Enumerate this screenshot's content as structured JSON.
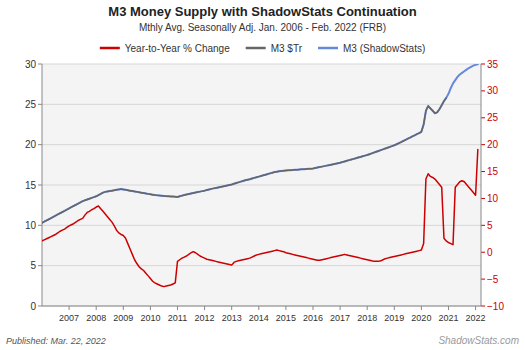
{
  "chart_data": {
    "type": "line",
    "title": "M3 Money Supply with ShadowStats Continuation",
    "subtitle": "Mthly Avg. Seasonally Adj. Jan. 2006 - Feb. 2022  (FRB)",
    "annotations": [
      "Published: Mar. 22, 2022",
      "ShadowStats.com"
    ],
    "x": [
      2006.0,
      2006.083,
      2006.167,
      2006.25,
      2006.333,
      2006.417,
      2006.5,
      2006.583,
      2006.667,
      2006.75,
      2006.833,
      2006.917,
      2007.0,
      2007.083,
      2007.167,
      2007.25,
      2007.333,
      2007.417,
      2007.5,
      2007.583,
      2007.667,
      2007.75,
      2007.833,
      2007.917,
      2008.0,
      2008.083,
      2008.167,
      2008.25,
      2008.333,
      2008.417,
      2008.5,
      2008.583,
      2008.667,
      2008.75,
      2008.833,
      2008.917,
      2009.0,
      2009.083,
      2009.167,
      2009.25,
      2009.333,
      2009.417,
      2009.5,
      2009.583,
      2009.667,
      2009.75,
      2009.833,
      2009.917,
      2010.0,
      2010.083,
      2010.167,
      2010.25,
      2010.333,
      2010.417,
      2010.5,
      2010.583,
      2010.667,
      2010.75,
      2010.833,
      2010.917,
      2011.0,
      2011.083,
      2011.167,
      2011.25,
      2011.333,
      2011.417,
      2011.5,
      2011.583,
      2011.667,
      2011.75,
      2011.833,
      2011.917,
      2012.0,
      2012.083,
      2012.167,
      2012.25,
      2012.333,
      2012.417,
      2012.5,
      2012.583,
      2012.667,
      2012.75,
      2012.833,
      2012.917,
      2013.0,
      2013.083,
      2013.167,
      2013.25,
      2013.333,
      2013.417,
      2013.5,
      2013.583,
      2013.667,
      2013.75,
      2013.833,
      2013.917,
      2014.0,
      2014.083,
      2014.167,
      2014.25,
      2014.333,
      2014.417,
      2014.5,
      2014.583,
      2014.667,
      2014.75,
      2014.833,
      2014.917,
      2015.0,
      2015.083,
      2015.167,
      2015.25,
      2015.333,
      2015.417,
      2015.5,
      2015.583,
      2015.667,
      2015.75,
      2015.833,
      2015.917,
      2016.0,
      2016.083,
      2016.167,
      2016.25,
      2016.333,
      2016.417,
      2016.5,
      2016.583,
      2016.667,
      2016.75,
      2016.833,
      2016.917,
      2017.0,
      2017.083,
      2017.167,
      2017.25,
      2017.333,
      2017.417,
      2017.5,
      2017.583,
      2017.667,
      2017.75,
      2017.833,
      2017.917,
      2018.0,
      2018.083,
      2018.167,
      2018.25,
      2018.333,
      2018.417,
      2018.5,
      2018.583,
      2018.667,
      2018.75,
      2018.833,
      2018.917,
      2019.0,
      2019.083,
      2019.167,
      2019.25,
      2019.333,
      2019.417,
      2019.5,
      2019.583,
      2019.667,
      2019.75,
      2019.833,
      2019.917,
      2020.0,
      2020.083,
      2020.167,
      2020.25,
      2020.333,
      2020.417,
      2020.5,
      2020.583,
      2020.667,
      2020.75,
      2020.833,
      2020.917,
      2021.0,
      2021.083,
      2021.167,
      2021.25,
      2021.333,
      2021.417,
      2021.5,
      2021.583,
      2021.667,
      2021.75,
      2021.833,
      2021.917,
      2022.0,
      2022.083
    ],
    "xlim": [
      2006.0,
      2022.2
    ],
    "xticks": [
      2007,
      2008,
      2009,
      2010,
      2011,
      2012,
      2013,
      2014,
      2015,
      2016,
      2017,
      2018,
      2019,
      2020,
      2021,
      2022
    ],
    "ylim": [
      0,
      30
    ],
    "yticks": [
      0,
      5,
      10,
      15,
      20,
      25,
      30
    ],
    "y2lim": [
      -10,
      35
    ],
    "y2ticks": [
      {
        "value": -10,
        "label": "−10"
      },
      {
        "value": -5,
        "label": "−5"
      },
      0,
      5,
      10,
      15,
      20,
      25,
      30,
      35
    ],
    "grid": true,
    "legend": "top",
    "series": [
      {
        "name": "Year-to-Year % Change",
        "color": "#cc0000",
        "axis": "y2",
        "values": [
          2.1,
          2.3,
          2.5,
          2.7,
          2.9,
          3.1,
          3.3,
          3.6,
          3.9,
          4.1,
          4.3,
          4.6,
          4.9,
          5.1,
          5.3,
          5.6,
          5.9,
          6.1,
          6.3,
          6.9,
          7.4,
          7.6,
          7.9,
          8.1,
          8.4,
          8.6,
          8.1,
          7.6,
          7.1,
          6.6,
          6.1,
          5.6,
          4.9,
          4.1,
          3.6,
          3.3,
          3.1,
          2.6,
          1.6,
          0.6,
          -0.4,
          -1.4,
          -2.1,
          -2.7,
          -3.1,
          -3.4,
          -3.9,
          -4.4,
          -4.9,
          -5.4,
          -5.7,
          -5.9,
          -6.1,
          -6.3,
          -6.4,
          -6.3,
          -6.2,
          -6.1,
          -5.9,
          -5.7,
          -1.7,
          -1.4,
          -1.1,
          -0.9,
          -0.7,
          -0.4,
          -0.1,
          0.1,
          -0.1,
          -0.4,
          -0.7,
          -0.9,
          -1.1,
          -1.3,
          -1.4,
          -1.5,
          -1.6,
          -1.7,
          -1.8,
          -1.9,
          -2.0,
          -2.1,
          -2.2,
          -2.3,
          -2.4,
          -1.9,
          -1.7,
          -1.6,
          -1.5,
          -1.4,
          -1.3,
          -1.2,
          -1.1,
          -0.9,
          -0.7,
          -0.5,
          -0.4,
          -0.3,
          -0.2,
          -0.1,
          0.0,
          0.1,
          0.2,
          0.3,
          0.4,
          0.3,
          0.2,
          0.1,
          -0.1,
          -0.2,
          -0.3,
          -0.4,
          -0.5,
          -0.6,
          -0.7,
          -0.8,
          -0.9,
          -1.0,
          -1.1,
          -1.2,
          -1.3,
          -1.4,
          -1.5,
          -1.5,
          -1.4,
          -1.3,
          -1.2,
          -1.1,
          -1.0,
          -0.9,
          -0.8,
          -0.7,
          -0.6,
          -0.5,
          -0.4,
          -0.5,
          -0.6,
          -0.7,
          -0.8,
          -0.9,
          -1.0,
          -1.1,
          -1.2,
          -1.3,
          -1.4,
          -1.5,
          -1.6,
          -1.7,
          -1.7,
          -1.7,
          -1.6,
          -1.4,
          -1.2,
          -1.1,
          -1.0,
          -0.9,
          -0.8,
          -0.7,
          -0.6,
          -0.5,
          -0.4,
          -0.3,
          -0.2,
          -0.1,
          0.0,
          0.1,
          0.2,
          0.3,
          0.4,
          1.6,
          13.6,
          14.6,
          14.1,
          13.9,
          13.6,
          13.1,
          12.6,
          12.1,
          2.6,
          2.1,
          1.8,
          1.6,
          1.4,
          12.1,
          12.6,
          13.1,
          13.3,
          13.1,
          12.6,
          12.1,
          11.6,
          11.1,
          10.6,
          19.1
        ]
      },
      {
        "name": "M3 $Tr",
        "color": "#666666",
        "values": [
          10.3,
          10.45,
          10.6,
          10.75,
          10.9,
          11.05,
          11.2,
          11.35,
          11.5,
          11.65,
          11.8,
          11.95,
          12.1,
          12.25,
          12.4,
          12.55,
          12.7,
          12.85,
          13.0,
          13.1,
          13.2,
          13.3,
          13.4,
          13.5,
          13.6,
          13.75,
          13.9,
          14.05,
          14.15,
          14.2,
          14.25,
          14.3,
          14.35,
          14.4,
          14.45,
          14.5,
          14.45,
          14.4,
          14.35,
          14.3,
          14.25,
          14.2,
          14.15,
          14.1,
          14.05,
          14.0,
          13.95,
          13.9,
          13.85,
          13.8,
          13.75,
          13.72,
          13.7,
          13.68,
          13.65,
          13.62,
          13.6,
          13.58,
          13.56,
          13.54,
          13.52,
          13.6,
          13.68,
          13.75,
          13.82,
          13.88,
          13.94,
          14.0,
          14.06,
          14.12,
          14.18,
          14.24,
          14.3,
          14.38,
          14.45,
          14.52,
          14.58,
          14.64,
          14.7,
          14.76,
          14.82,
          14.88,
          14.94,
          15.0,
          15.06,
          15.15,
          15.24,
          15.33,
          15.42,
          15.5,
          15.58,
          15.65,
          15.72,
          15.8,
          15.88,
          15.96,
          16.04,
          16.12,
          16.2,
          16.28,
          16.36,
          16.44,
          16.52,
          16.6,
          16.65,
          16.7,
          16.74,
          16.77,
          16.8,
          16.82,
          16.84,
          16.86,
          16.88,
          16.9,
          16.92,
          16.94,
          16.96,
          16.98,
          17.0,
          17.02,
          17.04,
          17.1,
          17.16,
          17.22,
          17.28,
          17.34,
          17.4,
          17.46,
          17.52,
          17.58,
          17.64,
          17.7,
          17.76,
          17.84,
          17.92,
          18.0,
          18.08,
          18.16,
          18.24,
          18.32,
          18.4,
          18.48,
          18.56,
          18.64,
          18.72,
          18.82,
          18.92,
          19.02,
          19.12,
          19.22,
          19.32,
          19.42,
          19.52,
          19.62,
          19.72,
          19.82,
          19.92,
          20.05,
          20.18,
          20.32,
          20.46,
          20.6,
          20.74,
          20.88,
          21.02,
          21.16,
          21.3,
          21.44,
          21.6,
          22.5,
          24.2,
          24.8,
          24.5,
          24.2,
          23.9,
          24.0,
          24.4,
          24.9,
          25.4,
          25.8,
          null,
          null,
          null,
          null,
          null,
          null,
          null,
          null,
          null,
          null,
          null,
          null,
          null,
          null
        ]
      },
      {
        "name": "M3 (ShadowStats)",
        "color": "#6688dd",
        "values": [
          10.3,
          10.45,
          10.6,
          10.75,
          10.9,
          11.05,
          11.2,
          11.35,
          11.5,
          11.65,
          11.8,
          11.95,
          12.1,
          12.25,
          12.4,
          12.55,
          12.7,
          12.85,
          13.0,
          13.1,
          13.2,
          13.3,
          13.4,
          13.5,
          13.6,
          13.75,
          13.9,
          14.05,
          14.15,
          14.2,
          14.25,
          14.3,
          14.35,
          14.4,
          14.45,
          14.5,
          14.45,
          14.4,
          14.35,
          14.3,
          14.25,
          14.2,
          14.15,
          14.1,
          14.05,
          14.0,
          13.95,
          13.9,
          13.85,
          13.8,
          13.75,
          13.72,
          13.7,
          13.68,
          13.65,
          13.62,
          13.6,
          13.58,
          13.56,
          13.54,
          13.52,
          13.6,
          13.68,
          13.75,
          13.82,
          13.88,
          13.94,
          14.0,
          14.06,
          14.12,
          14.18,
          14.24,
          14.3,
          14.38,
          14.45,
          14.52,
          14.58,
          14.64,
          14.7,
          14.76,
          14.82,
          14.88,
          14.94,
          15.0,
          15.06,
          15.15,
          15.24,
          15.33,
          15.42,
          15.5,
          15.58,
          15.65,
          15.72,
          15.8,
          15.88,
          15.96,
          16.04,
          16.12,
          16.2,
          16.28,
          16.36,
          16.44,
          16.52,
          16.6,
          16.65,
          16.7,
          16.74,
          16.77,
          16.8,
          16.82,
          16.84,
          16.86,
          16.88,
          16.9,
          16.92,
          16.94,
          16.96,
          16.98,
          17.0,
          17.02,
          17.04,
          17.1,
          17.16,
          17.22,
          17.28,
          17.34,
          17.4,
          17.46,
          17.52,
          17.58,
          17.64,
          17.7,
          17.76,
          17.84,
          17.92,
          18.0,
          18.08,
          18.16,
          18.24,
          18.32,
          18.4,
          18.48,
          18.56,
          18.64,
          18.72,
          18.82,
          18.92,
          19.02,
          19.12,
          19.22,
          19.32,
          19.42,
          19.52,
          19.62,
          19.72,
          19.82,
          19.92,
          20.05,
          20.18,
          20.32,
          20.46,
          20.6,
          20.74,
          20.88,
          21.02,
          21.16,
          21.3,
          21.44,
          21.6,
          22.5,
          24.2,
          24.8,
          24.5,
          24.2,
          23.9,
          24.0,
          24.4,
          24.9,
          25.4,
          25.8,
          26.3,
          27.0,
          27.6,
          28.0,
          28.4,
          28.7,
          28.9,
          29.1,
          29.3,
          29.5,
          29.65,
          29.8,
          29.9,
          29.97
        ]
      }
    ]
  }
}
